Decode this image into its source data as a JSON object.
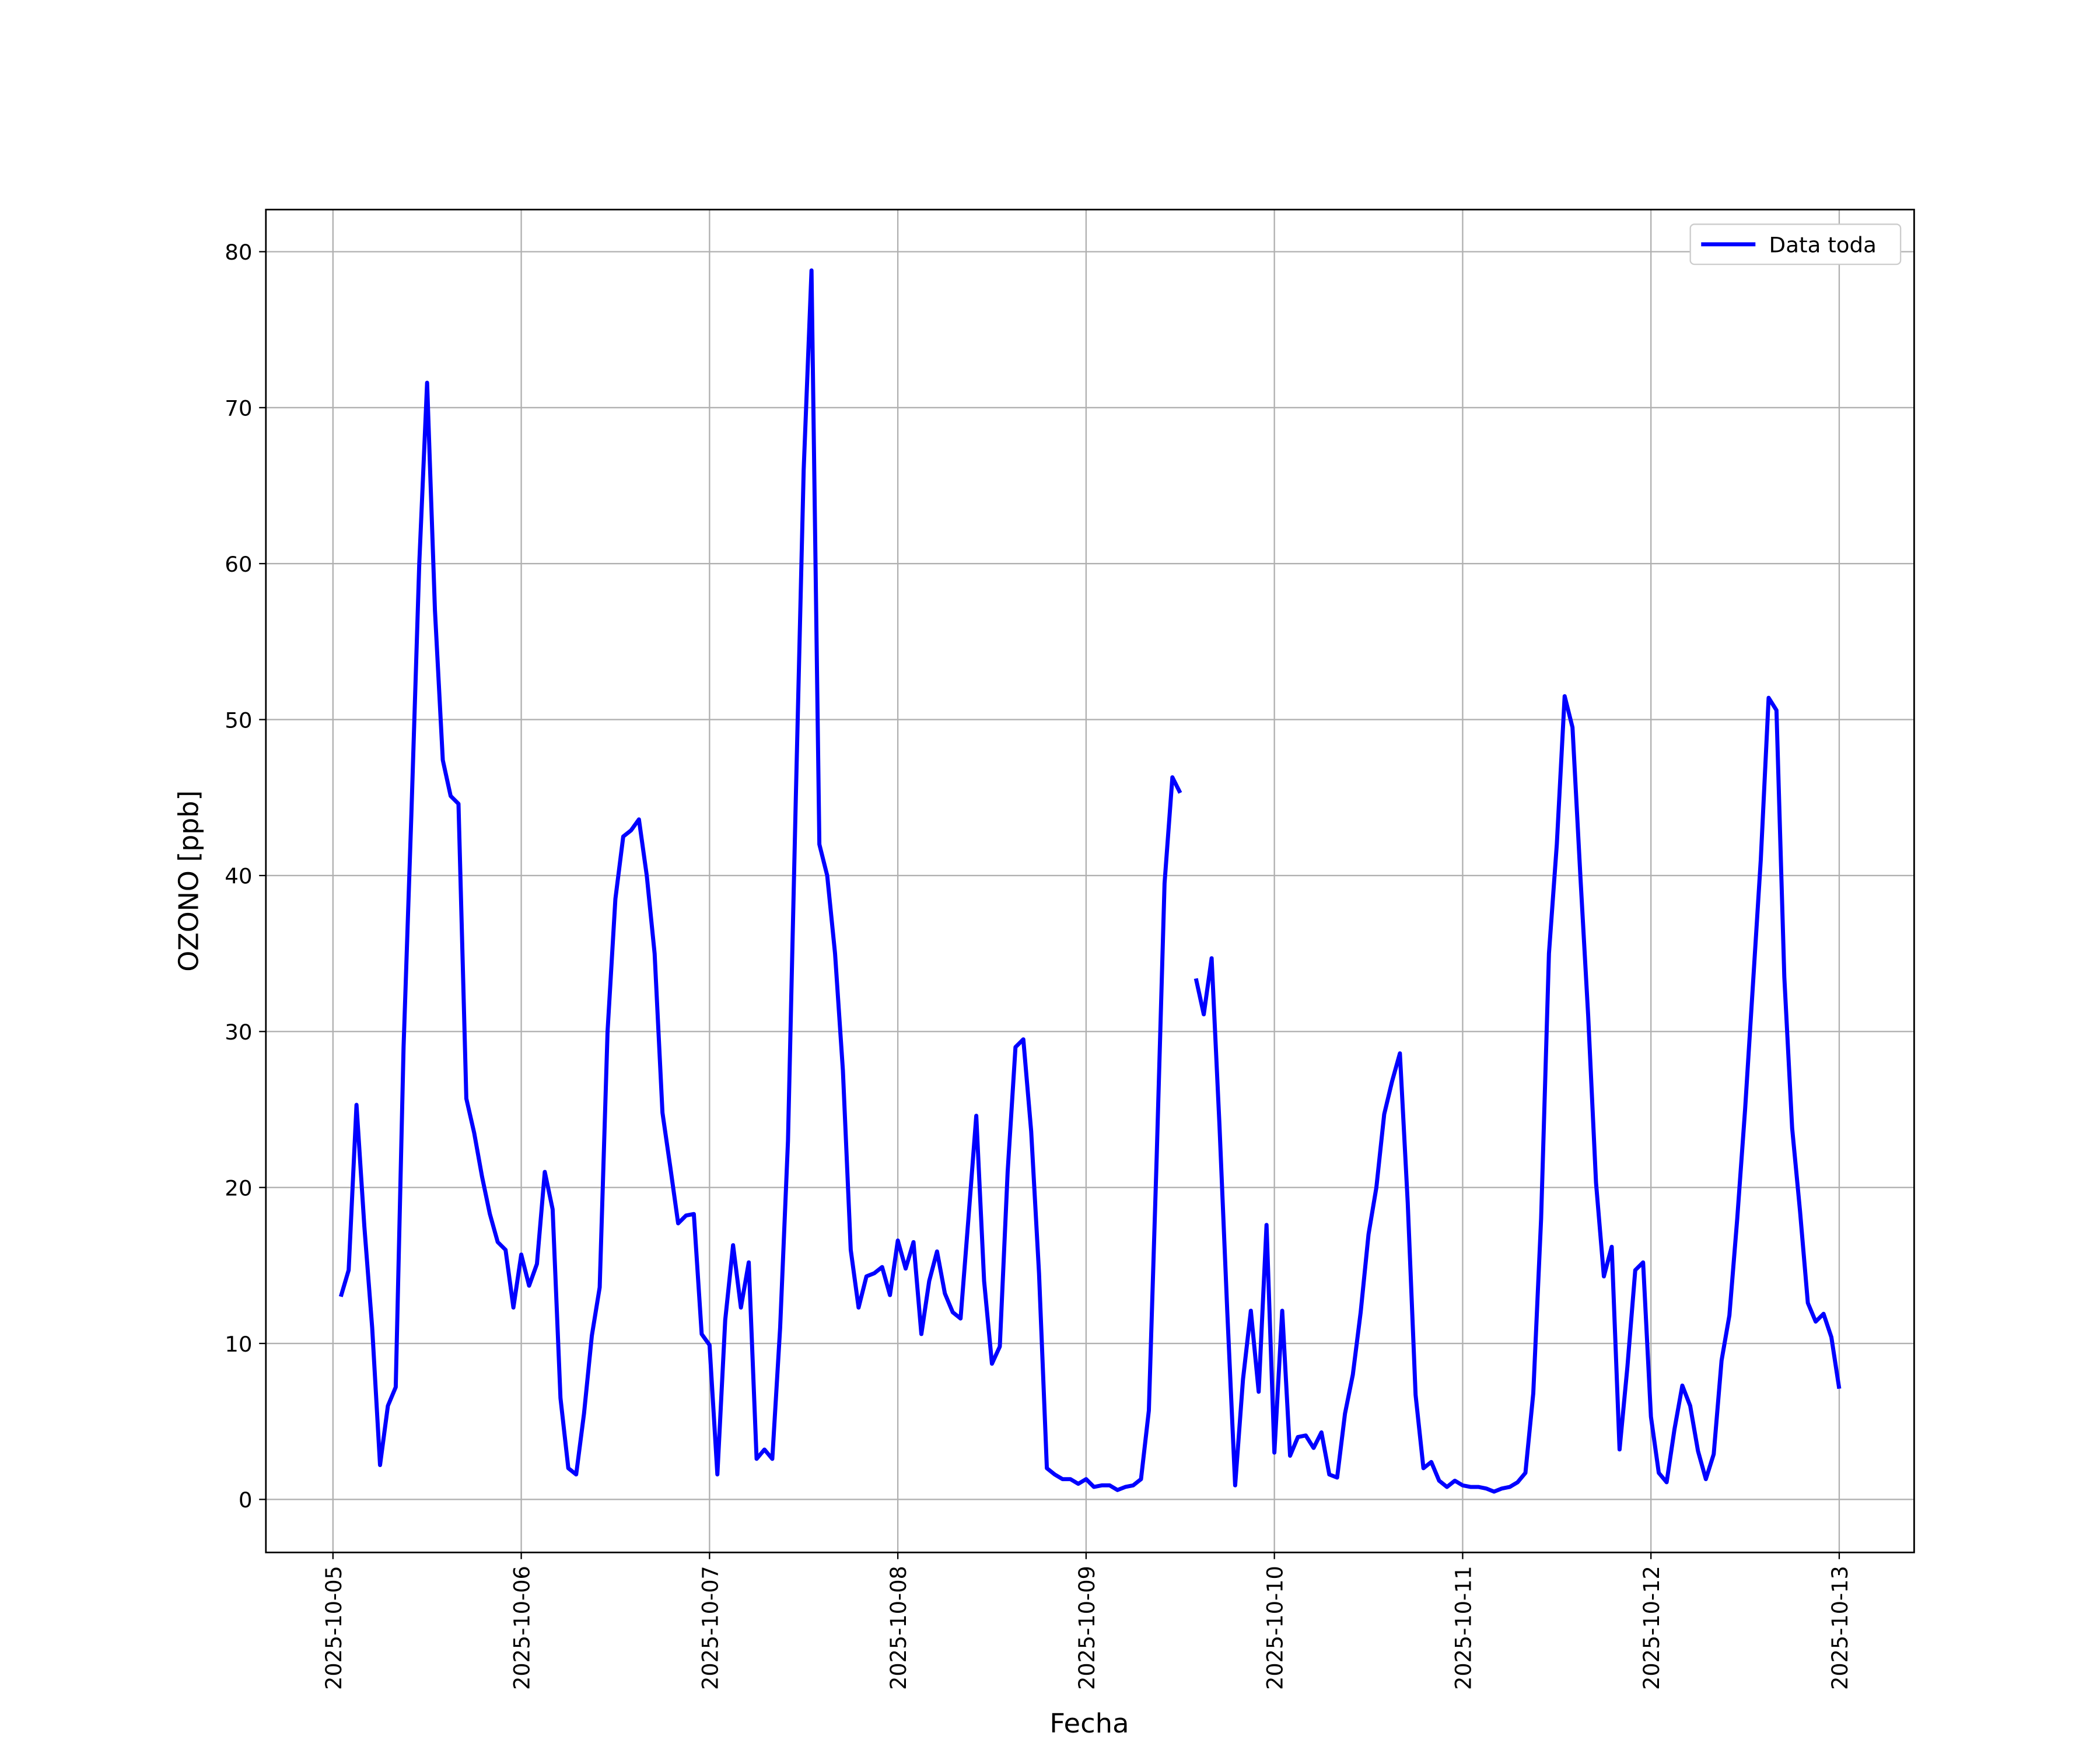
{
  "chart_data": {
    "type": "line",
    "xlabel": "Fecha",
    "ylabel": "OZONO [ppb]",
    "x": [
      "2025-10-05 01:00",
      "2025-10-05 02:00",
      "2025-10-05 03:00",
      "2025-10-05 04:00",
      "2025-10-05 05:00",
      "2025-10-05 06:00",
      "2025-10-05 07:00",
      "2025-10-05 08:00",
      "2025-10-05 09:00",
      "2025-10-05 10:00",
      "2025-10-05 11:00",
      "2025-10-05 12:00",
      "2025-10-05 13:00",
      "2025-10-05 14:00",
      "2025-10-05 15:00",
      "2025-10-05 16:00",
      "2025-10-05 17:00",
      "2025-10-05 18:00",
      "2025-10-05 19:00",
      "2025-10-05 20:00",
      "2025-10-05 21:00",
      "2025-10-05 22:00",
      "2025-10-05 23:00",
      "2025-10-06 00:00",
      "2025-10-06 01:00",
      "2025-10-06 02:00",
      "2025-10-06 03:00",
      "2025-10-06 04:00",
      "2025-10-06 05:00",
      "2025-10-06 06:00",
      "2025-10-06 07:00",
      "2025-10-06 08:00",
      "2025-10-06 09:00",
      "2025-10-06 10:00",
      "2025-10-06 11:00",
      "2025-10-06 12:00",
      "2025-10-06 13:00",
      "2025-10-06 14:00",
      "2025-10-06 15:00",
      "2025-10-06 16:00",
      "2025-10-06 17:00",
      "2025-10-06 18:00",
      "2025-10-06 19:00",
      "2025-10-06 20:00",
      "2025-10-06 21:00",
      "2025-10-06 22:00",
      "2025-10-06 23:00",
      "2025-10-07 00:00",
      "2025-10-07 01:00",
      "2025-10-07 02:00",
      "2025-10-07 03:00",
      "2025-10-07 04:00",
      "2025-10-07 05:00",
      "2025-10-07 06:00",
      "2025-10-07 07:00",
      "2025-10-07 08:00",
      "2025-10-07 09:00",
      "2025-10-07 10:00",
      "2025-10-07 11:00",
      "2025-10-07 12:00",
      "2025-10-07 13:00",
      "2025-10-07 14:00",
      "2025-10-07 15:00",
      "2025-10-07 16:00",
      "2025-10-07 17:00",
      "2025-10-07 18:00",
      "2025-10-07 19:00",
      "2025-10-07 20:00",
      "2025-10-07 21:00",
      "2025-10-07 22:00",
      "2025-10-07 23:00",
      "2025-10-08 00:00",
      "2025-10-08 01:00",
      "2025-10-08 02:00",
      "2025-10-08 03:00",
      "2025-10-08 04:00",
      "2025-10-08 05:00",
      "2025-10-08 06:00",
      "2025-10-08 07:00",
      "2025-10-08 08:00",
      "2025-10-08 09:00",
      "2025-10-08 10:00",
      "2025-10-08 11:00",
      "2025-10-08 12:00",
      "2025-10-08 13:00",
      "2025-10-08 14:00",
      "2025-10-08 15:00",
      "2025-10-08 16:00",
      "2025-10-08 17:00",
      "2025-10-08 18:00",
      "2025-10-08 19:00",
      "2025-10-08 20:00",
      "2025-10-08 21:00",
      "2025-10-08 22:00",
      "2025-10-08 23:00",
      "2025-10-09 00:00",
      "2025-10-09 01:00",
      "2025-10-09 02:00",
      "2025-10-09 03:00",
      "2025-10-09 04:00",
      "2025-10-09 05:00",
      "2025-10-09 06:00",
      "2025-10-09 07:00",
      "2025-10-09 08:00",
      "2025-10-09 09:00",
      "2025-10-09 10:00",
      "2025-10-09 11:00",
      "2025-10-09 12:00",
      "2025-10-09 13:00",
      "2025-10-09 14:00",
      "2025-10-09 15:00",
      "2025-10-09 16:00",
      "2025-10-09 17:00",
      "2025-10-09 18:00",
      "2025-10-09 19:00",
      "2025-10-09 20:00",
      "2025-10-09 21:00",
      "2025-10-09 22:00",
      "2025-10-09 23:00",
      "2025-10-10 00:00",
      "2025-10-10 01:00",
      "2025-10-10 02:00",
      "2025-10-10 03:00",
      "2025-10-10 04:00",
      "2025-10-10 05:00",
      "2025-10-10 06:00",
      "2025-10-10 07:00",
      "2025-10-10 08:00",
      "2025-10-10 09:00",
      "2025-10-10 10:00",
      "2025-10-10 11:00",
      "2025-10-10 12:00",
      "2025-10-10 13:00",
      "2025-10-10 14:00",
      "2025-10-10 15:00",
      "2025-10-10 16:00",
      "2025-10-10 17:00",
      "2025-10-10 18:00",
      "2025-10-10 19:00",
      "2025-10-10 20:00",
      "2025-10-10 21:00",
      "2025-10-10 22:00",
      "2025-10-10 23:00",
      "2025-10-11 00:00",
      "2025-10-11 01:00",
      "2025-10-11 02:00",
      "2025-10-11 03:00",
      "2025-10-11 04:00",
      "2025-10-11 05:00",
      "2025-10-11 06:00",
      "2025-10-11 07:00",
      "2025-10-11 08:00",
      "2025-10-11 09:00",
      "2025-10-11 10:00",
      "2025-10-11 11:00",
      "2025-10-11 12:00",
      "2025-10-11 13:00",
      "2025-10-11 14:00",
      "2025-10-11 15:00",
      "2025-10-11 16:00",
      "2025-10-11 17:00",
      "2025-10-11 18:00",
      "2025-10-11 19:00",
      "2025-10-11 20:00",
      "2025-10-11 21:00",
      "2025-10-11 22:00",
      "2025-10-11 23:00",
      "2025-10-12 00:00",
      "2025-10-12 01:00",
      "2025-10-12 02:00",
      "2025-10-12 03:00",
      "2025-10-12 04:00",
      "2025-10-12 05:00",
      "2025-10-12 06:00",
      "2025-10-12 07:00",
      "2025-10-12 08:00",
      "2025-10-12 09:00",
      "2025-10-12 10:00",
      "2025-10-12 11:00",
      "2025-10-12 12:00",
      "2025-10-12 13:00",
      "2025-10-12 14:00",
      "2025-10-12 15:00",
      "2025-10-12 16:00",
      "2025-10-12 17:00",
      "2025-10-12 18:00",
      "2025-10-12 19:00",
      "2025-10-12 20:00",
      "2025-10-12 21:00",
      "2025-10-12 22:00",
      "2025-10-12 23:00",
      "2025-10-13 00:00"
    ],
    "series": [
      {
        "name": "Data toda",
        "color": "#0000ff",
        "values": [
          13.0,
          14.7,
          25.3,
          17.5,
          11.0,
          2.2,
          6.0,
          7.2,
          29,
          44,
          60,
          71.6,
          57,
          47.4,
          45.1,
          44.6,
          25.7,
          23.5,
          20.7,
          18.3,
          16.5,
          16.0,
          12.3,
          15.7,
          13.7,
          15.1,
          21.0,
          18.6,
          6.5,
          2.0,
          1.6,
          5.5,
          10.5,
          13.6,
          30,
          38.5,
          42.5,
          42.9,
          43.6,
          40,
          35,
          24.8,
          21.3,
          17.7,
          18.2,
          18.3,
          10.6,
          9.9,
          1.6,
          11.5,
          16.3,
          12.3,
          15.2,
          2.6,
          3.2,
          2.6,
          11,
          23,
          45,
          66,
          78.8,
          42,
          40,
          35,
          27.5,
          16,
          12.3,
          14.3,
          14.5,
          14.9,
          13.1,
          16.6,
          14.8,
          16.5,
          10.6,
          14.0,
          15.9,
          13.2,
          12.0,
          11.6,
          18,
          24.6,
          14,
          8.7,
          9.8,
          21,
          29,
          29.5,
          23.6,
          14.5,
          2.0,
          1.6,
          1.3,
          1.3,
          1.0,
          1.3,
          0.8,
          0.9,
          0.9,
          0.6,
          0.8,
          0.9,
          1.3,
          5.7,
          22,
          39.5,
          46.3,
          45.3,
          null,
          33.4,
          31.1,
          34.7,
          24,
          12,
          0.9,
          7.7,
          12.1,
          6.9,
          17.6,
          3.0,
          12.1,
          2.8,
          4.0,
          4.1,
          3.3,
          4.3,
          1.6,
          1.4,
          5.5,
          8,
          12,
          17,
          20,
          24.7,
          26.8,
          28.6,
          19,
          6.7,
          2.0,
          2.4,
          1.2,
          0.8,
          1.2,
          0.9,
          0.8,
          0.8,
          0.7,
          0.5,
          0.7,
          0.8,
          1.1,
          1.7,
          6.8,
          18,
          35,
          42,
          51.5,
          49.5,
          40,
          31,
          20.3,
          14.3,
          16.2,
          3.2,
          8.5,
          14.7,
          15.2,
          5.3,
          1.7,
          1.1,
          4.5,
          7.3,
          6.0,
          3.1,
          1.3,
          2.9,
          8.9,
          11.8,
          18,
          25,
          33,
          41,
          51.4,
          50.6,
          33.5,
          23.8,
          18.5,
          12.6,
          11.4,
          11.9,
          10.4,
          7.1
        ]
      }
    ],
    "xlim": [
      "2025-10-04 15:27",
      "2025-10-13 09:33"
    ],
    "xticks": [
      "2025-10-05",
      "2025-10-06",
      "2025-10-07",
      "2025-10-08",
      "2025-10-09",
      "2025-10-10",
      "2025-10-11",
      "2025-10-12",
      "2025-10-13"
    ],
    "ylim": [
      -3.4,
      82.7
    ],
    "yticks": [
      0,
      10,
      20,
      30,
      40,
      50,
      60,
      70,
      80
    ],
    "grid": true,
    "legend": "upper right"
  }
}
